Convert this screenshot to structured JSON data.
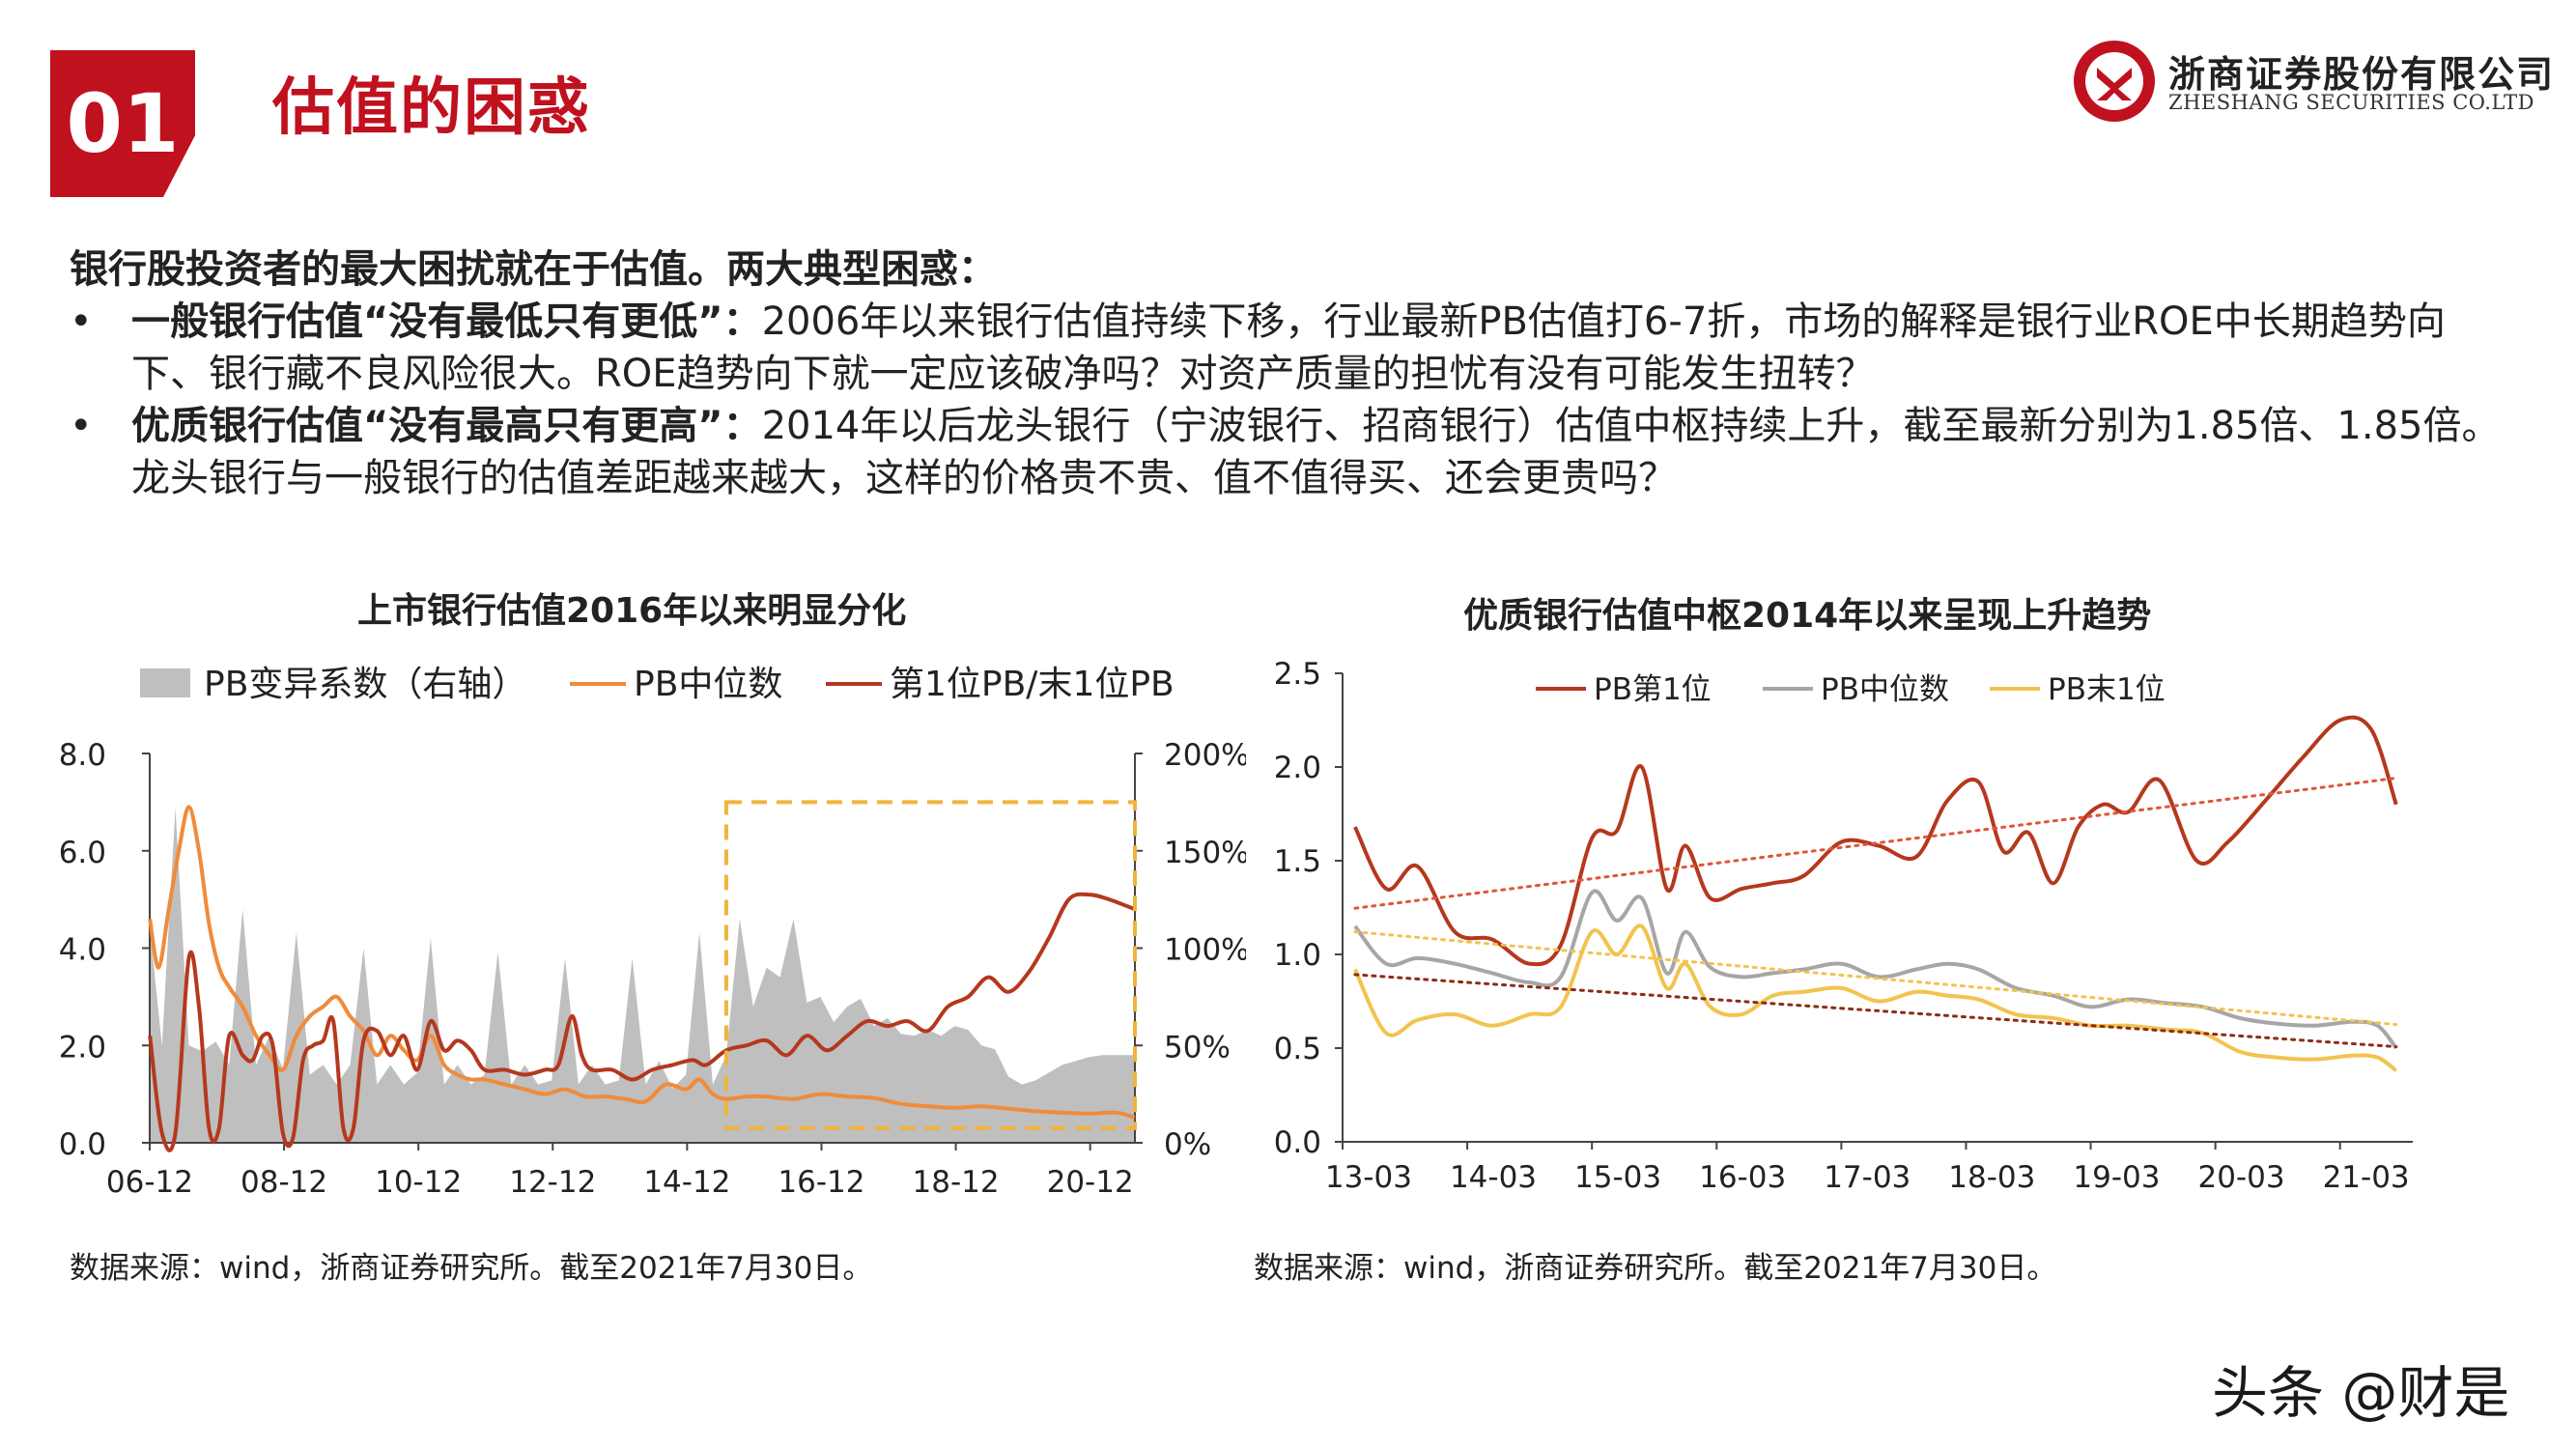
{
  "header": {
    "badge": "01",
    "title": "估值的困惑",
    "logo_cn": "浙商证券股份有限公司",
    "logo_en": "ZHESHANG SECURITIES CO.LTD",
    "brand_color": "#c0111f"
  },
  "intro": {
    "lead": "银行股投资者的最大困扰就在于估值。两大典型困惑：",
    "bullets": [
      {
        "marker": "•",
        "heading": "一般银行估值“没有最低只有更低”：",
        "text": "2006年以来银行估值持续下移，行业最新PB估值打6-7折，市场的解释是银行业ROE中长期趋势向下、银行藏不良风险很大。ROE趋势向下就一定应该破净吗？对资产质量的担忧有没有可能发生扭转？"
      },
      {
        "marker": "•",
        "heading": "优质银行估值“没有最高只有更高”：",
        "text": "2014年以后龙头银行（宁波银行、招商银行）估值中枢持续上升，截至最新分别为1.85倍、1.85倍。龙头银行与一般银行的估值差距越来越大，这样的价格贵不贵、值不值得买、还会更贵吗？"
      }
    ]
  },
  "chart_data": [
    {
      "type": "area+line",
      "title": "上市银行估值2016年以来明显分化",
      "categories": [
        "06-12",
        "08-12",
        "10-12",
        "12-12",
        "14-12",
        "16-12",
        "18-12",
        "20-12"
      ],
      "x_range": [
        2006.917,
        2021.583
      ],
      "ylim": [
        0,
        8
      ],
      "yticks": [
        "0.0",
        "2.0",
        "4.0",
        "6.0",
        "8.0"
      ],
      "y2lim": [
        0,
        2
      ],
      "y2ticks": [
        "0%",
        "50%",
        "100%",
        "150%",
        "200%"
      ],
      "legend": [
        "PB变异系数（右轴）",
        "PB中位数",
        "第1位PB/末1位PB"
      ],
      "legend_position": "top",
      "highlight_box": {
        "x": [
          2015.5,
          2021.583
        ],
        "y": [
          0.3,
          7.0
        ],
        "color": "#f0b43c"
      },
      "series": [
        {
          "name": "PB变异系数（右轴）",
          "axis": "right",
          "kind": "area",
          "color": "#bfbfbf",
          "x": [
            2006.92,
            2007.1,
            2007.3,
            2007.5,
            2007.7,
            2007.9,
            2008.1,
            2008.3,
            2008.5,
            2008.7,
            2008.9,
            2009.1,
            2009.3,
            2009.5,
            2009.7,
            2009.9,
            2010.1,
            2010.3,
            2010.5,
            2010.7,
            2010.9,
            2011.1,
            2011.3,
            2011.5,
            2011.7,
            2011.9,
            2012.1,
            2012.3,
            2012.5,
            2012.7,
            2012.9,
            2013.1,
            2013.3,
            2013.5,
            2013.7,
            2013.9,
            2014.1,
            2014.3,
            2014.5,
            2014.7,
            2014.9,
            2015.1,
            2015.3,
            2015.5,
            2015.7,
            2015.9,
            2016.1,
            2016.3,
            2016.5,
            2016.7,
            2016.9,
            2017.1,
            2017.3,
            2017.5,
            2017.7,
            2017.9,
            2018.1,
            2018.3,
            2018.5,
            2018.7,
            2018.9,
            2019.1,
            2019.3,
            2019.5,
            2019.7,
            2019.9,
            2020.1,
            2020.3,
            2020.5,
            2020.7,
            2020.9,
            2021.1,
            2021.3,
            2021.58
          ],
          "values": [
            1.1,
            0.5,
            1.72,
            0.5,
            0.47,
            0.52,
            0.4,
            1.2,
            0.4,
            0.55,
            0.38,
            1.08,
            0.35,
            0.4,
            0.3,
            0.4,
            1.0,
            0.3,
            0.4,
            0.3,
            0.36,
            1.05,
            0.3,
            0.4,
            0.3,
            0.35,
            0.98,
            0.3,
            0.4,
            0.3,
            0.32,
            0.95,
            0.3,
            0.4,
            0.3,
            0.32,
            0.95,
            0.3,
            0.42,
            0.28,
            0.35,
            1.08,
            0.3,
            0.45,
            1.15,
            0.7,
            0.9,
            0.85,
            1.15,
            0.72,
            0.75,
            0.62,
            0.7,
            0.74,
            0.6,
            0.64,
            0.56,
            0.55,
            0.58,
            0.55,
            0.6,
            0.58,
            0.5,
            0.48,
            0.34,
            0.3,
            0.32,
            0.36,
            0.4,
            0.42,
            0.44,
            0.45,
            0.45,
            0.45
          ]
        },
        {
          "name": "PB中位数",
          "axis": "left",
          "kind": "line",
          "color": "#f08b3a",
          "x": [
            2006.92,
            2007.05,
            2007.2,
            2007.35,
            2007.5,
            2007.65,
            2007.8,
            2007.95,
            2008.1,
            2008.3,
            2008.5,
            2008.7,
            2008.9,
            2009.1,
            2009.3,
            2009.5,
            2009.7,
            2009.9,
            2010.1,
            2010.3,
            2010.5,
            2010.7,
            2010.9,
            2011.1,
            2011.3,
            2011.5,
            2011.7,
            2011.9,
            2012.2,
            2012.5,
            2012.8,
            2013.1,
            2013.4,
            2013.7,
            2014.0,
            2014.3,
            2014.6,
            2014.9,
            2015.1,
            2015.3,
            2015.5,
            2015.8,
            2016.1,
            2016.5,
            2016.9,
            2017.3,
            2017.7,
            2018.1,
            2018.5,
            2018.9,
            2019.3,
            2019.7,
            2020.1,
            2020.5,
            2020.9,
            2021.3,
            2021.58
          ],
          "values": [
            4.6,
            3.6,
            4.8,
            6.0,
            6.9,
            6.0,
            4.5,
            3.6,
            3.2,
            2.8,
            2.2,
            1.8,
            1.5,
            2.2,
            2.6,
            2.8,
            3.0,
            2.6,
            2.3,
            1.8,
            2.2,
            1.9,
            1.7,
            2.2,
            1.6,
            1.4,
            1.3,
            1.3,
            1.2,
            1.1,
            1.0,
            1.1,
            0.95,
            0.95,
            0.9,
            0.85,
            1.2,
            1.1,
            1.3,
            1.0,
            0.9,
            0.95,
            0.95,
            0.9,
            1.0,
            0.95,
            0.92,
            0.8,
            0.75,
            0.72,
            0.75,
            0.7,
            0.65,
            0.62,
            0.6,
            0.62,
            0.52
          ]
        },
        {
          "name": "第1位PB/末1位PB",
          "axis": "left",
          "kind": "line",
          "color": "#b5381e",
          "x": [
            2006.92,
            2007.1,
            2007.3,
            2007.5,
            2007.65,
            2007.8,
            2007.95,
            2008.1,
            2008.3,
            2008.45,
            2008.6,
            2008.75,
            2008.9,
            2009.05,
            2009.2,
            2009.35,
            2009.5,
            2009.65,
            2009.8,
            2009.95,
            2010.1,
            2010.3,
            2010.5,
            2010.7,
            2010.9,
            2011.1,
            2011.3,
            2011.5,
            2011.7,
            2011.9,
            2012.2,
            2012.5,
            2012.8,
            2013.0,
            2013.2,
            2013.35,
            2013.5,
            2013.8,
            2014.1,
            2014.4,
            2014.7,
            2015.0,
            2015.2,
            2015.5,
            2015.8,
            2016.1,
            2016.4,
            2016.7,
            2017.0,
            2017.3,
            2017.6,
            2017.9,
            2018.2,
            2018.5,
            2018.8,
            2019.1,
            2019.4,
            2019.7,
            2020.0,
            2020.3,
            2020.6,
            2020.9,
            2021.2,
            2021.58
          ],
          "values": [
            2.2,
            0.2,
            0.2,
            3.8,
            2.8,
            0.3,
            0.3,
            2.2,
            1.8,
            1.7,
            2.2,
            2.0,
            0.2,
            0.1,
            1.7,
            2.0,
            2.1,
            2.5,
            0.3,
            0.3,
            2.1,
            2.3,
            1.8,
            2.2,
            1.5,
            2.5,
            1.9,
            2.1,
            1.9,
            1.5,
            1.5,
            1.4,
            1.5,
            1.6,
            2.6,
            1.8,
            1.5,
            1.5,
            1.3,
            1.5,
            1.6,
            1.7,
            1.6,
            1.9,
            2.0,
            2.1,
            1.8,
            2.2,
            1.9,
            2.2,
            2.5,
            2.4,
            2.5,
            2.3,
            2.8,
            3.0,
            3.4,
            3.1,
            3.5,
            4.2,
            5.0,
            5.1,
            5.0,
            4.8
          ]
        }
      ],
      "source": "数据来源：wind，浙商证券研究所。截至2021年7月30日。"
    },
    {
      "type": "line",
      "title": "优质银行估值中枢2014年以来呈现上升趋势",
      "categories": [
        "13-03",
        "14-03",
        "15-03",
        "16-03",
        "17-03",
        "18-03",
        "19-03",
        "20-03",
        "21-03"
      ],
      "x_range": [
        2013.0,
        2021.583
      ],
      "ylim": [
        0,
        2.5
      ],
      "yticks": [
        "0.0",
        "0.5",
        "1.0",
        "1.5",
        "2.0",
        "2.5"
      ],
      "legend": [
        "PB第1位",
        "PB中位数",
        "PB末1位"
      ],
      "legend_position": "top",
      "trendlines": "dotted",
      "series": [
        {
          "name": "PB第1位",
          "color": "#b5381e",
          "x": [
            2013.1,
            2013.35,
            2013.6,
            2013.9,
            2014.2,
            2014.5,
            2014.75,
            2015.0,
            2015.2,
            2015.4,
            2015.6,
            2015.75,
            2015.95,
            2016.2,
            2016.45,
            2016.7,
            2017.0,
            2017.3,
            2017.6,
            2017.85,
            2018.1,
            2018.3,
            2018.5,
            2018.7,
            2018.9,
            2019.1,
            2019.3,
            2019.55,
            2019.85,
            2020.1,
            2020.4,
            2020.7,
            2021.0,
            2021.25,
            2021.45
          ],
          "values": [
            1.68,
            1.35,
            1.47,
            1.12,
            1.08,
            0.95,
            1.05,
            1.62,
            1.66,
            2.0,
            1.35,
            1.58,
            1.3,
            1.35,
            1.38,
            1.42,
            1.6,
            1.58,
            1.52,
            1.82,
            1.92,
            1.55,
            1.65,
            1.38,
            1.68,
            1.8,
            1.76,
            1.93,
            1.5,
            1.6,
            1.82,
            2.05,
            2.25,
            2.2,
            1.8
          ]
        },
        {
          "name": "PB中位数",
          "color": "#a6a6a6",
          "x": [
            2013.1,
            2013.35,
            2013.6,
            2013.9,
            2014.2,
            2014.5,
            2014.75,
            2015.0,
            2015.2,
            2015.4,
            2015.6,
            2015.75,
            2015.95,
            2016.2,
            2016.45,
            2016.7,
            2017.0,
            2017.3,
            2017.6,
            2017.85,
            2018.1,
            2018.4,
            2018.7,
            2019.0,
            2019.3,
            2019.6,
            2019.9,
            2020.2,
            2020.5,
            2020.8,
            2021.1,
            2021.3,
            2021.45
          ],
          "values": [
            1.15,
            0.95,
            0.98,
            0.95,
            0.9,
            0.85,
            0.88,
            1.33,
            1.18,
            1.3,
            0.9,
            1.12,
            0.93,
            0.88,
            0.9,
            0.92,
            0.95,
            0.88,
            0.92,
            0.95,
            0.92,
            0.82,
            0.78,
            0.72,
            0.76,
            0.74,
            0.72,
            0.66,
            0.63,
            0.62,
            0.64,
            0.62,
            0.5
          ]
        },
        {
          "name": "PB末1位",
          "color": "#f2c34e",
          "x": [
            2013.1,
            2013.35,
            2013.6,
            2013.9,
            2014.2,
            2014.5,
            2014.75,
            2015.0,
            2015.2,
            2015.4,
            2015.6,
            2015.75,
            2015.95,
            2016.2,
            2016.45,
            2016.7,
            2017.0,
            2017.3,
            2017.6,
            2017.85,
            2018.1,
            2018.4,
            2018.7,
            2019.0,
            2019.3,
            2019.6,
            2019.9,
            2020.2,
            2020.5,
            2020.8,
            2021.1,
            2021.3,
            2021.45
          ],
          "values": [
            0.92,
            0.58,
            0.65,
            0.68,
            0.62,
            0.68,
            0.72,
            1.12,
            1.0,
            1.15,
            0.82,
            0.95,
            0.72,
            0.68,
            0.78,
            0.8,
            0.82,
            0.75,
            0.8,
            0.78,
            0.76,
            0.68,
            0.66,
            0.62,
            0.62,
            0.6,
            0.58,
            0.48,
            0.45,
            0.44,
            0.46,
            0.45,
            0.38
          ]
        }
      ],
      "source": "数据来源：wind，浙商证券研究所。截至2021年7月30日。"
    }
  ],
  "watermark": "头条 @财是"
}
